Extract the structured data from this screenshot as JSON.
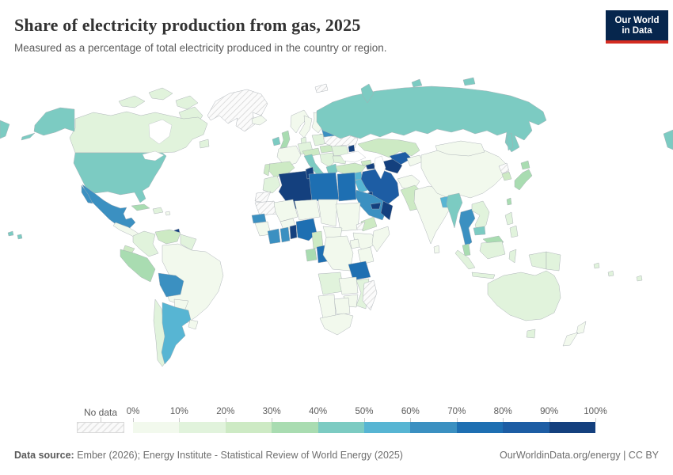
{
  "header": {
    "title": "Share of electricity production from gas, 2025",
    "subtitle": "Measured as a percentage of total electricity produced in the country or region."
  },
  "logo": {
    "line1": "Our World",
    "line2": "in Data"
  },
  "legend": {
    "no_data_label": "No data",
    "tick_labels": [
      "0%",
      "10%",
      "20%",
      "30%",
      "40%",
      "50%",
      "60%",
      "70%",
      "80%",
      "90%",
      "100%"
    ],
    "bin_colors": [
      "#f2f9ed",
      "#e1f3dc",
      "#cdeac4",
      "#a9dcb1",
      "#7ccbc2",
      "#57b5d3",
      "#3b90c1",
      "#1e6fb2",
      "#1d5da4",
      "#14407e"
    ]
  },
  "footer": {
    "source_label": "Data source:",
    "source_text": " Ember (2026); Energy Institute - Statistical Review of World Energy (2025)",
    "right_text": "OurWorldinData.org/energy | CC BY"
  },
  "chart_data": {
    "type": "choropleth",
    "title": "Share of electricity production from gas, 2025",
    "unit": "% of total electricity production",
    "bin_ranges": [
      "0-10%",
      "10-20%",
      "20-30%",
      "30-40%",
      "40-50%",
      "50-60%",
      "60-70%",
      "70-80%",
      "80-90%",
      "90-100%"
    ],
    "no_data": "hatched",
    "regions": [
      {
        "id": "greenland",
        "name": "Greenland",
        "bin": null,
        "value": "No data"
      },
      {
        "id": "canada",
        "name": "Canada",
        "bin": 1,
        "value": "10-20%"
      },
      {
        "id": "united-states",
        "name": "United States",
        "bin": 4,
        "value": "40-50%"
      },
      {
        "id": "mexico",
        "name": "Mexico",
        "bin": 6,
        "value": "60-70%"
      },
      {
        "id": "central-america",
        "name": "Central America",
        "bin": 0,
        "value": "0-10%"
      },
      {
        "id": "cuba",
        "name": "Cuba",
        "bin": 3,
        "value": "30-40%"
      },
      {
        "id": "hispaniola",
        "name": "Hispaniola",
        "bin": 1,
        "value": "10-20%"
      },
      {
        "id": "puerto-rico",
        "name": "Puerto Rico",
        "bin": 0,
        "value": "0-10%"
      },
      {
        "id": "trinidad-and-tobago",
        "name": "Trinidad and Tobago",
        "bin": 9,
        "value": "90-100%"
      },
      {
        "id": "colombia",
        "name": "Colombia",
        "bin": 1,
        "value": "10-20%"
      },
      {
        "id": "venezuela",
        "name": "Venezuela",
        "bin": 2,
        "value": "20-30%"
      },
      {
        "id": "guyanas",
        "name": "Guyana / Suriname",
        "bin": 1,
        "value": "10-20%"
      },
      {
        "id": "ecuador",
        "name": "Ecuador",
        "bin": 2,
        "value": "20-30%"
      },
      {
        "id": "peru",
        "name": "Peru",
        "bin": 3,
        "value": "30-40%"
      },
      {
        "id": "brazil",
        "name": "Brazil",
        "bin": 0,
        "value": "0-10%"
      },
      {
        "id": "bolivia",
        "name": "Bolivia",
        "bin": 6,
        "value": "60-70%"
      },
      {
        "id": "paraguay",
        "name": "Paraguay",
        "bin": 0,
        "value": "0-10%"
      },
      {
        "id": "chile",
        "name": "Chile",
        "bin": 1,
        "value": "10-20%"
      },
      {
        "id": "argentina",
        "name": "Argentina",
        "bin": 5,
        "value": "50-60%"
      },
      {
        "id": "uruguay",
        "name": "Uruguay",
        "bin": 0,
        "value": "0-10%"
      },
      {
        "id": "iceland",
        "name": "Iceland",
        "bin": 0,
        "value": "0-10%"
      },
      {
        "id": "ireland",
        "name": "Ireland",
        "bin": 4,
        "value": "40-50%"
      },
      {
        "id": "united-kingdom",
        "name": "United Kingdom",
        "bin": 3,
        "value": "30-40%"
      },
      {
        "id": "norway",
        "name": "Norway",
        "bin": 0,
        "value": "0-10%"
      },
      {
        "id": "sweden",
        "name": "Sweden",
        "bin": 0,
        "value": "0-10%"
      },
      {
        "id": "finland",
        "name": "Finland",
        "bin": 0,
        "value": "0-10%"
      },
      {
        "id": "baltics",
        "name": "Baltic states",
        "bin": 1,
        "value": "10-20%"
      },
      {
        "id": "denmark",
        "name": "Denmark",
        "bin": 1,
        "value": "10-20%"
      },
      {
        "id": "germany",
        "name": "Germany",
        "bin": 1,
        "value": "10-20%"
      },
      {
        "id": "france",
        "name": "France",
        "bin": 0,
        "value": "0-10%"
      },
      {
        "id": "spain",
        "name": "Spain",
        "bin": 2,
        "value": "20-30%"
      },
      {
        "id": "portugal",
        "name": "Portugal",
        "bin": 2,
        "value": "20-30%"
      },
      {
        "id": "alpine-europe",
        "name": "Austria / Switzerland / Czechia",
        "bin": 2,
        "value": "20-30%"
      },
      {
        "id": "italy",
        "name": "Italy",
        "bin": 4,
        "value": "40-50%"
      },
      {
        "id": "poland",
        "name": "Poland",
        "bin": 1,
        "value": "10-20%"
      },
      {
        "id": "hungary",
        "name": "Hungary / Slovakia",
        "bin": 2,
        "value": "20-30%"
      },
      {
        "id": "balkans",
        "name": "Balkans",
        "bin": 1,
        "value": "10-20%"
      },
      {
        "id": "greece",
        "name": "Greece",
        "bin": 4,
        "value": "40-50%"
      },
      {
        "id": "romania",
        "name": "Romania",
        "bin": 1,
        "value": "10-20%"
      },
      {
        "id": "bulgaria",
        "name": "Bulgaria",
        "bin": 1,
        "value": "10-20%"
      },
      {
        "id": "ukraine",
        "name": "Ukraine",
        "bin": null,
        "value": "No data"
      },
      {
        "id": "belarus",
        "name": "Belarus",
        "bin": 6,
        "value": "60-70%"
      },
      {
        "id": "moldova",
        "name": "Moldova",
        "bin": 9,
        "value": "90-100%"
      },
      {
        "id": "russia",
        "name": "Russia",
        "bin": 4,
        "value": "40-50%"
      },
      {
        "id": "svalbard",
        "name": "Svalbard",
        "bin": null,
        "value": "No data"
      },
      {
        "id": "kazakhstan",
        "name": "Kazakhstan",
        "bin": 2,
        "value": "20-30%"
      },
      {
        "id": "uzbekistan",
        "name": "Uzbekistan",
        "bin": 8,
        "value": "80-90%"
      },
      {
        "id": "kyrgyzstan-tajikistan",
        "name": "Kyrgyzstan / Tajikistan",
        "bin": 0,
        "value": "0-10%"
      },
      {
        "id": "turkmenistan",
        "name": "Turkmenistan",
        "bin": 9,
        "value": "90-100%"
      },
      {
        "id": "georgia-armenia",
        "name": "Georgia / Armenia",
        "bin": 2,
        "value": "20-30%"
      },
      {
        "id": "azerbaijan",
        "name": "Azerbaijan",
        "bin": 9,
        "value": "90-100%"
      },
      {
        "id": "turkey",
        "name": "Turkey",
        "bin": 2,
        "value": "20-30%"
      },
      {
        "id": "syria",
        "name": "Syria",
        "bin": 5,
        "value": "50-60%"
      },
      {
        "id": "levant",
        "name": "Jordan / Israel region",
        "bin": 1,
        "value": "10-20%"
      },
      {
        "id": "iraq",
        "name": "Iraq",
        "bin": 5,
        "value": "50-60%"
      },
      {
        "id": "iran",
        "name": "Iran",
        "bin": 8,
        "value": "80-90%"
      },
      {
        "id": "kuwait",
        "name": "Kuwait",
        "bin": 9,
        "value": "90-100%"
      },
      {
        "id": "saudi-arabia",
        "name": "Saudi Arabia",
        "bin": 6,
        "value": "60-70%"
      },
      {
        "id": "yemen",
        "name": "Yemen",
        "bin": 2,
        "value": "20-30%"
      },
      {
        "id": "oman",
        "name": "Oman",
        "bin": 9,
        "value": "90-100%"
      },
      {
        "id": "uae-qatar",
        "name": "UAE / Qatar",
        "bin": 9,
        "value": "90-100%"
      },
      {
        "id": "morocco",
        "name": "Morocco",
        "bin": 1,
        "value": "10-20%"
      },
      {
        "id": "western-sahara",
        "name": "Western Sahara",
        "bin": null,
        "value": "No data"
      },
      {
        "id": "mauritania",
        "name": "Mauritania",
        "bin": null,
        "value": "No data"
      },
      {
        "id": "senegal",
        "name": "Senegal",
        "bin": 6,
        "value": "60-70%"
      },
      {
        "id": "guinea-region",
        "name": "Guinea region",
        "bin": 0,
        "value": "0-10%"
      },
      {
        "id": "mali",
        "name": "Mali",
        "bin": 0,
        "value": "0-10%"
      },
      {
        "id": "burkina-faso",
        "name": "Burkina Faso",
        "bin": 0,
        "value": "0-10%"
      },
      {
        "id": "ivory-coast",
        "name": "Cote d'Ivoire",
        "bin": 6,
        "value": "60-70%"
      },
      {
        "id": "ghana",
        "name": "Ghana",
        "bin": 6,
        "value": "60-70%"
      },
      {
        "id": "togo-benin",
        "name": "Togo / Benin",
        "bin": 9,
        "value": "90-100%"
      },
      {
        "id": "nigeria",
        "name": "Nigeria",
        "bin": 7,
        "value": "70-80%"
      },
      {
        "id": "niger",
        "name": "Niger",
        "bin": 0,
        "value": "0-10%"
      },
      {
        "id": "chad",
        "name": "Chad",
        "bin": 0,
        "value": "0-10%"
      },
      {
        "id": "sudan",
        "name": "Sudan",
        "bin": 0,
        "value": "0-10%"
      },
      {
        "id": "eritrea",
        "name": "Eritrea",
        "bin": null,
        "value": "No data"
      },
      {
        "id": "tunisia",
        "name": "Tunisia",
        "bin": 9,
        "value": "90-100%"
      },
      {
        "id": "algeria",
        "name": "Algeria",
        "bin": 9,
        "value": "90-100%"
      },
      {
        "id": "libya",
        "name": "Libya",
        "bin": 7,
        "value": "70-80%"
      },
      {
        "id": "egypt",
        "name": "Egypt",
        "bin": 7,
        "value": "70-80%"
      },
      {
        "id": "cameroon",
        "name": "Cameroon",
        "bin": 2,
        "value": "20-30%"
      },
      {
        "id": "central-african-republic",
        "name": "Central African Republic",
        "bin": 0,
        "value": "0-10%"
      },
      {
        "id": "gabon",
        "name": "Gabon",
        "bin": 3,
        "value": "30-40%"
      },
      {
        "id": "congo",
        "name": "Congo",
        "bin": 7,
        "value": "70-80%"
      },
      {
        "id": "dr-congo",
        "name": "Democratic Republic of Congo",
        "bin": 0,
        "value": "0-10%"
      },
      {
        "id": "ethiopia",
        "name": "Ethiopia",
        "bin": 0,
        "value": "0-10%"
      },
      {
        "id": "somalia",
        "name": "Somalia",
        "bin": 0,
        "value": "0-10%"
      },
      {
        "id": "kenya",
        "name": "Kenya",
        "bin": 0,
        "value": "0-10%"
      },
      {
        "id": "uganda",
        "name": "Uganda",
        "bin": 0,
        "value": "0-10%"
      },
      {
        "id": "tanzania",
        "name": "Tanzania",
        "bin": 7,
        "value": "70-80%"
      },
      {
        "id": "angola",
        "name": "Angola",
        "bin": 1,
        "value": "10-20%"
      },
      {
        "id": "zambia",
        "name": "Zambia",
        "bin": 0,
        "value": "0-10%"
      },
      {
        "id": "mozambique",
        "name": "Mozambique",
        "bin": 1,
        "value": "10-20%"
      },
      {
        "id": "zimbabwe",
        "name": "Zimbabwe",
        "bin": 0,
        "value": "0-10%"
      },
      {
        "id": "botswana",
        "name": "Botswana",
        "bin": 0,
        "value": "0-10%"
      },
      {
        "id": "namibia",
        "name": "Namibia",
        "bin": 0,
        "value": "0-10%"
      },
      {
        "id": "south-africa",
        "name": "South Africa",
        "bin": 0,
        "value": "0-10%"
      },
      {
        "id": "madagascar",
        "name": "Madagascar",
        "bin": null,
        "value": "No data"
      },
      {
        "id": "afghanistan",
        "name": "Afghanistan",
        "bin": 0,
        "value": "0-10%"
      },
      {
        "id": "pakistan",
        "name": "Pakistan",
        "bin": 2,
        "value": "20-30%"
      },
      {
        "id": "india",
        "name": "India",
        "bin": 0,
        "value": "0-10%"
      },
      {
        "id": "sri-lanka",
        "name": "Sri Lanka",
        "bin": 0,
        "value": "0-10%"
      },
      {
        "id": "bangladesh",
        "name": "Bangladesh",
        "bin": 5,
        "value": "50-60%"
      },
      {
        "id": "myanmar",
        "name": "Myanmar",
        "bin": 4,
        "value": "40-50%"
      },
      {
        "id": "thailand",
        "name": "Thailand",
        "bin": 6,
        "value": "60-70%"
      },
      {
        "id": "laos-vietnam",
        "name": "Laos / Vietnam",
        "bin": 1,
        "value": "10-20%"
      },
      {
        "id": "cambodia",
        "name": "Cambodia",
        "bin": 4,
        "value": "40-50%"
      },
      {
        "id": "malaysia",
        "name": "Malaysia",
        "bin": 3,
        "value": "30-40%"
      },
      {
        "id": "indonesia",
        "name": "Indonesia",
        "bin": 1,
        "value": "10-20%"
      },
      {
        "id": "papua-new-guinea",
        "name": "Papua New Guinea",
        "bin": 1,
        "value": "10-20%"
      },
      {
        "id": "philippines",
        "name": "Philippines",
        "bin": 1,
        "value": "10-20%"
      },
      {
        "id": "taiwan",
        "name": "Taiwan",
        "bin": 3,
        "value": "30-40%"
      },
      {
        "id": "china",
        "name": "China",
        "bin": 0,
        "value": "0-10%"
      },
      {
        "id": "mongolia",
        "name": "Mongolia",
        "bin": 0,
        "value": "0-10%"
      },
      {
        "id": "north-korea",
        "name": "North Korea",
        "bin": null,
        "value": "No data"
      },
      {
        "id": "south-korea",
        "name": "South Korea",
        "bin": 2,
        "value": "20-30%"
      },
      {
        "id": "japan",
        "name": "Japan",
        "bin": 3,
        "value": "30-40%"
      },
      {
        "id": "australia",
        "name": "Australia",
        "bin": 1,
        "value": "10-20%"
      },
      {
        "id": "new-zealand",
        "name": "New Zealand",
        "bin": 0,
        "value": "0-10%"
      },
      {
        "id": "pacific-islands",
        "name": "Pacific islands",
        "bin": 1,
        "value": "10-20%"
      }
    ]
  }
}
